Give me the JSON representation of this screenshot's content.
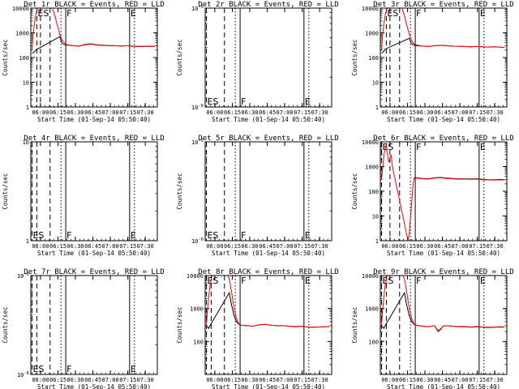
{
  "figure": {
    "xlabel": "Start Time (01-Sep-14 05:50:40)",
    "ylabel": "Counts/sec",
    "x_tick_labels": [
      "06:00",
      "06:15",
      "06:30",
      "06:45",
      "07:00",
      "07:15",
      "07:30"
    ]
  },
  "chart_data": [
    {
      "type": "line",
      "title": "Det 1r BLACK = Events, RED = LLD",
      "scale": "log",
      "ylim": [
        1,
        10000
      ],
      "y_ticks": [
        {
          "v": 1,
          "t": "1"
        },
        {
          "v": 10,
          "t": "10"
        },
        {
          "v": 100,
          "t": "100"
        },
        {
          "v": 1000,
          "t": "1000"
        },
        {
          "v": 10000,
          "t": "10000"
        }
      ],
      "xlim": [
        0,
        105
      ],
      "has_data": true,
      "markers": [
        {
          "label": "ES",
          "x": 5,
          "style": "dashed"
        },
        {
          "label": "F",
          "x": 29,
          "style": "solid"
        },
        {
          "label": "E",
          "x": 82,
          "style": "solid"
        }
      ],
      "extra_lines": [
        {
          "x": 8,
          "style": "dashed"
        },
        {
          "x": 16,
          "style": "dashed"
        },
        {
          "x": 25,
          "style": "dotted"
        },
        {
          "x": 86,
          "style": "dotted"
        }
      ],
      "series": [
        {
          "color": "#000000",
          "x": [
            1,
            3,
            4,
            24,
            25,
            26,
            28,
            30,
            35,
            40,
            45,
            50,
            55,
            60,
            65,
            70,
            75,
            80,
            85,
            90,
            95,
            100,
            103
          ],
          "y": [
            150,
            170,
            200,
            700,
            500,
            380,
            330,
            320,
            300,
            290,
            330,
            350,
            320,
            310,
            300,
            300,
            290,
            300,
            285,
            280,
            280,
            285,
            280
          ]
        },
        {
          "color": "#ff0000",
          "x": [
            1,
            2,
            4,
            6,
            8,
            10,
            12,
            14,
            16,
            18,
            20,
            22,
            24,
            26,
            28,
            30,
            35,
            40,
            45,
            50,
            55,
            60,
            65,
            70,
            75,
            80,
            85,
            90,
            95,
            100,
            103
          ],
          "y": [
            200,
            1000,
            5000,
            12000,
            12000,
            12000,
            12000,
            12000,
            12000,
            10000,
            5000,
            2000,
            900,
            500,
            380,
            330,
            300,
            290,
            340,
            360,
            330,
            315,
            300,
            300,
            295,
            300,
            290,
            285,
            285,
            290,
            285
          ]
        }
      ]
    },
    {
      "type": "line",
      "title": "Det 2r BLACK = Events, RED = LLD",
      "scale": "log",
      "ylim": [
        1e-06,
        1e-05
      ],
      "y_ticks": [
        {
          "v": 1e-06,
          "t": "10^-6"
        },
        {
          "v": 1e-05,
          "t": "10^-5"
        }
      ],
      "xlim": [
        0,
        105
      ],
      "has_data": false,
      "markers": [
        {
          "label": "ES",
          "x": 1,
          "style": "dashed"
        },
        {
          "label": "F",
          "x": 29,
          "style": "solid"
        },
        {
          "label": "E",
          "x": 82,
          "style": "solid"
        }
      ],
      "extra_lines": [
        {
          "x": 16,
          "style": "dashed"
        },
        {
          "x": 25,
          "style": "dotted"
        },
        {
          "x": 86,
          "style": "dotted"
        }
      ],
      "series": []
    },
    {
      "type": "line",
      "title": "Det 3r BLACK = Events, RED = LLD",
      "scale": "log",
      "ylim": [
        1,
        10000
      ],
      "y_ticks": [
        {
          "v": 1,
          "t": "1"
        },
        {
          "v": 10,
          "t": "10"
        },
        {
          "v": 100,
          "t": "100"
        },
        {
          "v": 1000,
          "t": "1000"
        },
        {
          "v": 10000,
          "t": "10000"
        }
      ],
      "xlim": [
        0,
        105
      ],
      "has_data": true,
      "markers": [
        {
          "label": "ES",
          "x": 5,
          "style": "dashed"
        },
        {
          "label": "F",
          "x": 29,
          "style": "solid"
        },
        {
          "label": "E",
          "x": 82,
          "style": "solid"
        }
      ],
      "extra_lines": [
        {
          "x": 8,
          "style": "dashed"
        },
        {
          "x": 16,
          "style": "dashed"
        },
        {
          "x": 25,
          "style": "dotted"
        },
        {
          "x": 86,
          "style": "dotted"
        }
      ],
      "series": [
        {
          "color": "#000000",
          "x": [
            1,
            3,
            4,
            24,
            25,
            26,
            28,
            30,
            35,
            40,
            45,
            50,
            55,
            60,
            65,
            70,
            75,
            80,
            85,
            90,
            95,
            100,
            103
          ],
          "y": [
            150,
            180,
            220,
            600,
            450,
            360,
            320,
            300,
            290,
            280,
            300,
            310,
            300,
            290,
            285,
            280,
            270,
            280,
            270,
            265,
            270,
            260,
            250
          ]
        },
        {
          "color": "#ff0000",
          "x": [
            1,
            2,
            4,
            6,
            8,
            10,
            12,
            14,
            16,
            18,
            20,
            22,
            24,
            26,
            28,
            30,
            35,
            40,
            45,
            50,
            55,
            60,
            65,
            70,
            75,
            80,
            85,
            90,
            95,
            100,
            103
          ],
          "y": [
            200,
            1000,
            5000,
            12000,
            12000,
            12000,
            12000,
            12000,
            12000,
            10000,
            5000,
            2000,
            900,
            480,
            360,
            320,
            290,
            280,
            300,
            310,
            300,
            290,
            285,
            280,
            275,
            280,
            270,
            265,
            270,
            260,
            255
          ]
        }
      ]
    },
    {
      "type": "line",
      "title": "Det 4r BLACK = Events, RED = LLD",
      "scale": "log",
      "ylim": [
        1,
        10
      ],
      "y_ticks": [
        {
          "v": 1,
          "t": "1"
        },
        {
          "v": 10,
          "t": "10"
        }
      ],
      "xlim": [
        0,
        105
      ],
      "has_data": false,
      "markers": [
        {
          "label": "ES",
          "x": 1,
          "style": "dashed"
        },
        {
          "label": "F",
          "x": 29,
          "style": "solid"
        },
        {
          "label": "E",
          "x": 82,
          "style": "solid"
        }
      ],
      "extra_lines": [
        {
          "x": 5,
          "style": "dashed"
        },
        {
          "x": 16,
          "style": "dashed"
        },
        {
          "x": 25,
          "style": "dotted"
        },
        {
          "x": 86,
          "style": "dotted"
        }
      ],
      "series": []
    },
    {
      "type": "line",
      "title": "Det 5r BLACK = Events, RED = LLD",
      "scale": "log",
      "ylim": [
        1e-06,
        1e-05
      ],
      "y_ticks": [
        {
          "v": 1e-06,
          "t": "10^-6"
        },
        {
          "v": 1e-05,
          "t": "10^-5"
        }
      ],
      "xlim": [
        0,
        105
      ],
      "has_data": false,
      "markers": [
        {
          "label": "ES",
          "x": 1,
          "style": "dashed"
        },
        {
          "label": "F",
          "x": 29,
          "style": "solid"
        },
        {
          "label": "E",
          "x": 82,
          "style": "solid"
        }
      ],
      "extra_lines": [
        {
          "x": 16,
          "style": "dashed"
        },
        {
          "x": 25,
          "style": "dotted"
        },
        {
          "x": 86,
          "style": "dotted"
        }
      ],
      "series": []
    },
    {
      "type": "line",
      "title": "Det 6r BLACK = Events, RED = LLD",
      "scale": "log",
      "ylim": [
        1,
        10000
      ],
      "y_ticks": [
        {
          "v": 1,
          "t": "1"
        },
        {
          "v": 10,
          "t": "10"
        },
        {
          "v": 100,
          "t": "100"
        },
        {
          "v": 1000,
          "t": "1000"
        },
        {
          "v": 10000,
          "t": "10000"
        }
      ],
      "xlim": [
        0,
        105
      ],
      "has_data": true,
      "markers": [
        {
          "label": "ES",
          "x": 1,
          "style": "dashed"
        },
        {
          "label": "F",
          "x": 29,
          "style": "solid"
        },
        {
          "label": "E",
          "x": 82,
          "style": "solid"
        }
      ],
      "extra_lines": [
        {
          "x": 8,
          "style": "dashed"
        },
        {
          "x": 16,
          "style": "dashed"
        },
        {
          "x": 25,
          "style": "dotted"
        },
        {
          "x": 86,
          "style": "dotted"
        }
      ],
      "series": [
        {
          "color": "#000000",
          "x": [
            28,
            29,
            30,
            35,
            40,
            45,
            50,
            55,
            60,
            65,
            70,
            75,
            80,
            85,
            90,
            95,
            100,
            103
          ],
          "y": [
            340,
            360,
            350,
            330,
            320,
            350,
            360,
            340,
            330,
            320,
            320,
            310,
            320,
            300,
            290,
            295,
            300,
            290
          ]
        },
        {
          "color": "#ff0000",
          "x": [
            1,
            3,
            5,
            6,
            7,
            9,
            10,
            23,
            24,
            25,
            26,
            27,
            28,
            30,
            35,
            40,
            45,
            50,
            55,
            60,
            65,
            70,
            75,
            80,
            85,
            90,
            95,
            100,
            103
          ],
          "y": [
            300,
            3000,
            8000,
            3000,
            1500,
            3000,
            1000,
            1,
            2,
            8,
            30,
            150,
            330,
            340,
            320,
            310,
            340,
            350,
            330,
            320,
            310,
            310,
            300,
            310,
            290,
            285,
            285,
            290,
            285
          ]
        }
      ]
    },
    {
      "type": "line",
      "title": "Det 7r BLACK = Events, RED = LLD",
      "scale": "log",
      "ylim": [
        1e-06,
        1e-05
      ],
      "y_ticks": [
        {
          "v": 1e-06,
          "t": "10^-6"
        },
        {
          "v": 1e-05,
          "t": "10^-5"
        }
      ],
      "xlim": [
        0,
        105
      ],
      "has_data": false,
      "markers": [
        {
          "label": "ES",
          "x": 1,
          "style": "dashed"
        },
        {
          "label": "F",
          "x": 29,
          "style": "solid"
        },
        {
          "label": "E",
          "x": 82,
          "style": "solid"
        }
      ],
      "extra_lines": [
        {
          "x": 5,
          "style": "dashed"
        },
        {
          "x": 16,
          "style": "dashed"
        },
        {
          "x": 25,
          "style": "dotted"
        },
        {
          "x": 86,
          "style": "dotted"
        }
      ],
      "series": []
    },
    {
      "type": "line",
      "title": "Det 8r BLACK = Events, RED = LLD",
      "scale": "log",
      "ylim": [
        10,
        10000
      ],
      "y_ticks": [
        {
          "v": 100,
          "t": "100"
        },
        {
          "v": 1000,
          "t": "1000"
        },
        {
          "v": 10000,
          "t": "10000"
        }
      ],
      "xlim": [
        0,
        105
      ],
      "has_data": true,
      "markers": [
        {
          "label": "ES",
          "x": 1,
          "style": "dashed"
        },
        {
          "label": "F",
          "x": 29,
          "style": "solid"
        },
        {
          "label": "E",
          "x": 82,
          "style": "solid"
        }
      ],
      "extra_lines": [
        {
          "x": 5,
          "style": "dashed"
        },
        {
          "x": 16,
          "style": "dashed"
        },
        {
          "x": 25,
          "style": "dotted"
        },
        {
          "x": 86,
          "style": "dotted"
        }
      ],
      "series": [
        {
          "color": "#000000",
          "x": [
            1,
            3,
            4,
            20,
            22,
            24,
            26,
            28,
            30,
            35,
            40,
            45,
            50,
            55,
            60,
            65,
            70,
            75,
            80,
            85,
            90,
            95,
            100,
            103
          ],
          "y": [
            300,
            250,
            300,
            3000,
            1200,
            600,
            400,
            330,
            310,
            300,
            290,
            320,
            330,
            310,
            300,
            300,
            290,
            280,
            290,
            275,
            270,
            275,
            280,
            280
          ]
        },
        {
          "color": "#ff0000",
          "x": [
            1,
            2,
            4,
            6,
            8,
            10,
            12,
            14,
            16,
            18,
            20,
            22,
            24,
            26,
            28,
            30,
            35,
            40,
            45,
            50,
            55,
            60,
            65,
            70,
            75,
            80,
            85,
            90,
            95,
            100,
            103
          ],
          "y": [
            300,
            1000,
            5000,
            12000,
            12000,
            12000,
            12000,
            12000,
            12000,
            12000,
            8000,
            3000,
            1000,
            500,
            340,
            310,
            300,
            290,
            320,
            330,
            310,
            300,
            300,
            290,
            285,
            290,
            275,
            270,
            275,
            280,
            285
          ]
        }
      ]
    },
    {
      "type": "line",
      "title": "Det 9r BLACK = Events, RED = LLD",
      "scale": "log",
      "ylim": [
        10,
        10000
      ],
      "y_ticks": [
        {
          "v": 100,
          "t": "100"
        },
        {
          "v": 1000,
          "t": "1000"
        },
        {
          "v": 10000,
          "t": "10000"
        }
      ],
      "xlim": [
        0,
        105
      ],
      "has_data": true,
      "markers": [
        {
          "label": "ES",
          "x": 1,
          "style": "dashed"
        },
        {
          "label": "F",
          "x": 29,
          "style": "solid"
        },
        {
          "label": "E",
          "x": 82,
          "style": "solid"
        }
      ],
      "extra_lines": [
        {
          "x": 5,
          "style": "dashed"
        },
        {
          "x": 16,
          "style": "dashed"
        },
        {
          "x": 25,
          "style": "dotted"
        },
        {
          "x": 86,
          "style": "dotted"
        }
      ],
      "series": [
        {
          "color": "#000000",
          "x": [
            1,
            3,
            4,
            20,
            22,
            24,
            26,
            28,
            30,
            35,
            40,
            45,
            48,
            50,
            52,
            55,
            60,
            65,
            70,
            75,
            80,
            85,
            90,
            95,
            100,
            103
          ],
          "y": [
            300,
            250,
            300,
            3000,
            1200,
            600,
            400,
            330,
            310,
            290,
            280,
            300,
            200,
            230,
            290,
            300,
            290,
            280,
            280,
            270,
            280,
            270,
            265,
            270,
            275,
            270
          ]
        },
        {
          "color": "#ff0000",
          "x": [
            1,
            2,
            4,
            6,
            8,
            10,
            12,
            14,
            16,
            18,
            20,
            22,
            24,
            26,
            28,
            30,
            35,
            40,
            45,
            48,
            50,
            52,
            55,
            60,
            65,
            70,
            75,
            80,
            85,
            90,
            95,
            100,
            103
          ],
          "y": [
            300,
            1000,
            5000,
            12000,
            12000,
            12000,
            12000,
            12000,
            12000,
            12000,
            8000,
            3000,
            1000,
            500,
            340,
            310,
            290,
            280,
            300,
            210,
            240,
            290,
            300,
            290,
            285,
            285,
            275,
            285,
            275,
            270,
            275,
            280,
            275
          ]
        }
      ]
    }
  ]
}
